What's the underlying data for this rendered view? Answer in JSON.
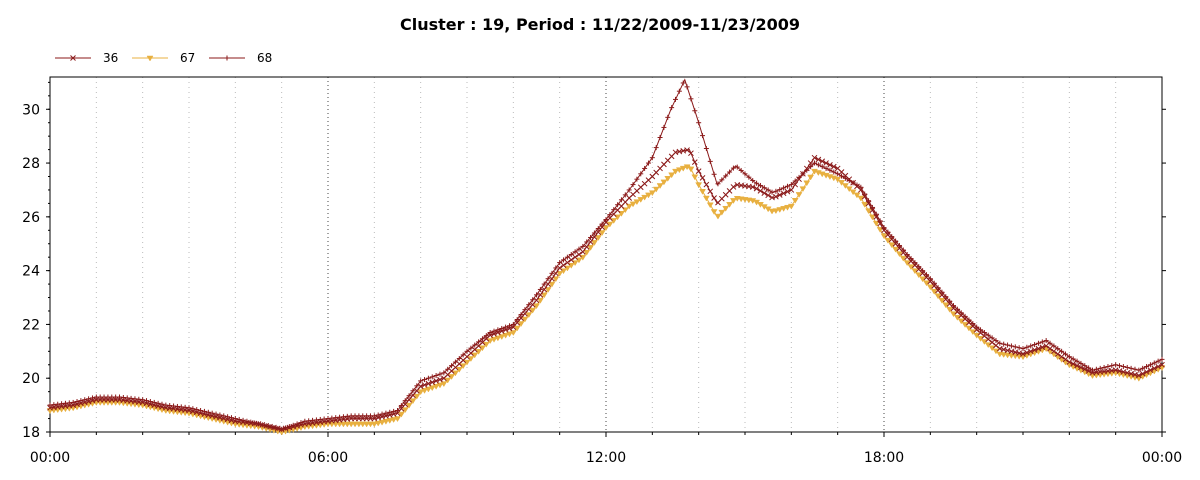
{
  "chart_data": {
    "type": "line",
    "title": "Cluster : 19, Period : 11/22/2009-11/23/2009",
    "xlabel": "",
    "ylabel": "",
    "x_unit": "hours",
    "xlim": [
      0,
      24
    ],
    "ylim": [
      18,
      31.2
    ],
    "x_ticks": [
      {
        "value": 0,
        "label": "00:00"
      },
      {
        "value": 6,
        "label": "06:00"
      },
      {
        "value": 12,
        "label": "12:00"
      },
      {
        "value": 18,
        "label": "18:00"
      },
      {
        "value": 24,
        "label": "00:00"
      }
    ],
    "y_ticks": [
      18,
      20,
      22,
      24,
      26,
      28,
      30
    ],
    "grid": "vertical dotted",
    "legend_position": "top-left",
    "series": [
      {
        "name": "36",
        "color": "#8b1a1a",
        "marker": "x",
        "points": [
          [
            0,
            18.9
          ],
          [
            0.5,
            19.0
          ],
          [
            1,
            19.2
          ],
          [
            1.5,
            19.2
          ],
          [
            2,
            19.1
          ],
          [
            2.5,
            18.9
          ],
          [
            3,
            18.8
          ],
          [
            3.5,
            18.6
          ],
          [
            4,
            18.4
          ],
          [
            4.5,
            18.3
          ],
          [
            5,
            18.1
          ],
          [
            5.5,
            18.3
          ],
          [
            6,
            18.4
          ],
          [
            6.5,
            18.5
          ],
          [
            7,
            18.5
          ],
          [
            7.5,
            18.7
          ],
          [
            8,
            19.7
          ],
          [
            8.5,
            20.0
          ],
          [
            9,
            20.8
          ],
          [
            9.5,
            21.6
          ],
          [
            10,
            21.9
          ],
          [
            10.5,
            22.9
          ],
          [
            11,
            24.1
          ],
          [
            11.5,
            24.7
          ],
          [
            12,
            25.8
          ],
          [
            12.5,
            26.7
          ],
          [
            13,
            27.5
          ],
          [
            13.5,
            28.4
          ],
          [
            13.8,
            28.5
          ],
          [
            14,
            27.7
          ],
          [
            14.4,
            26.5
          ],
          [
            14.8,
            27.2
          ],
          [
            15.2,
            27.1
          ],
          [
            15.6,
            26.7
          ],
          [
            16,
            27.0
          ],
          [
            16.5,
            28.2
          ],
          [
            17,
            27.8
          ],
          [
            17.5,
            27.0
          ],
          [
            18,
            25.5
          ],
          [
            18.5,
            24.5
          ],
          [
            19,
            23.6
          ],
          [
            19.5,
            22.6
          ],
          [
            20,
            21.8
          ],
          [
            20.5,
            21.1
          ],
          [
            21,
            20.9
          ],
          [
            21.5,
            21.2
          ],
          [
            22,
            20.6
          ],
          [
            22.5,
            20.2
          ],
          [
            23,
            20.3
          ],
          [
            23.5,
            20.1
          ],
          [
            24,
            20.5
          ]
        ]
      },
      {
        "name": "67",
        "color": "#e8b040",
        "marker": "triangle-down",
        "points": [
          [
            0,
            18.8
          ],
          [
            0.5,
            18.9
          ],
          [
            1,
            19.1
          ],
          [
            1.5,
            19.1
          ],
          [
            2,
            19.0
          ],
          [
            2.5,
            18.8
          ],
          [
            3,
            18.7
          ],
          [
            3.5,
            18.5
          ],
          [
            4,
            18.3
          ],
          [
            4.5,
            18.2
          ],
          [
            5,
            18.0
          ],
          [
            5.5,
            18.2
          ],
          [
            6,
            18.3
          ],
          [
            6.5,
            18.3
          ],
          [
            7,
            18.3
          ],
          [
            7.5,
            18.5
          ],
          [
            8,
            19.5
          ],
          [
            8.5,
            19.8
          ],
          [
            9,
            20.6
          ],
          [
            9.5,
            21.4
          ],
          [
            10,
            21.7
          ],
          [
            10.5,
            22.7
          ],
          [
            11,
            23.9
          ],
          [
            11.5,
            24.5
          ],
          [
            12,
            25.6
          ],
          [
            12.5,
            26.4
          ],
          [
            13,
            26.9
          ],
          [
            13.5,
            27.7
          ],
          [
            13.8,
            27.9
          ],
          [
            14,
            27.2
          ],
          [
            14.4,
            26.0
          ],
          [
            14.8,
            26.7
          ],
          [
            15.2,
            26.6
          ],
          [
            15.6,
            26.2
          ],
          [
            16,
            26.4
          ],
          [
            16.5,
            27.7
          ],
          [
            17,
            27.4
          ],
          [
            17.5,
            26.7
          ],
          [
            18,
            25.3
          ],
          [
            18.5,
            24.3
          ],
          [
            19,
            23.4
          ],
          [
            19.5,
            22.4
          ],
          [
            20,
            21.6
          ],
          [
            20.5,
            20.9
          ],
          [
            21,
            20.8
          ],
          [
            21.5,
            21.1
          ],
          [
            22,
            20.5
          ],
          [
            22.5,
            20.1
          ],
          [
            23,
            20.2
          ],
          [
            23.5,
            20.0
          ],
          [
            24,
            20.4
          ]
        ]
      },
      {
        "name": "68",
        "color": "#8b1a1a",
        "marker": "plus",
        "points": [
          [
            0,
            19.0
          ],
          [
            0.5,
            19.1
          ],
          [
            1,
            19.3
          ],
          [
            1.5,
            19.3
          ],
          [
            2,
            19.2
          ],
          [
            2.5,
            19.0
          ],
          [
            3,
            18.9
          ],
          [
            3.5,
            18.7
          ],
          [
            4,
            18.5
          ],
          [
            4.5,
            18.3
          ],
          [
            5,
            18.1
          ],
          [
            5.5,
            18.4
          ],
          [
            6,
            18.5
          ],
          [
            6.5,
            18.6
          ],
          [
            7,
            18.6
          ],
          [
            7.5,
            18.8
          ],
          [
            8,
            19.9
          ],
          [
            8.5,
            20.2
          ],
          [
            9,
            21.0
          ],
          [
            9.5,
            21.7
          ],
          [
            10,
            22.0
          ],
          [
            10.5,
            23.1
          ],
          [
            11,
            24.3
          ],
          [
            11.5,
            24.9
          ],
          [
            12,
            25.9
          ],
          [
            12.5,
            27.0
          ],
          [
            13,
            28.2
          ],
          [
            13.4,
            30.0
          ],
          [
            13.7,
            31.1
          ],
          [
            14,
            29.5
          ],
          [
            14.4,
            27.2
          ],
          [
            14.8,
            27.9
          ],
          [
            15.2,
            27.3
          ],
          [
            15.6,
            26.9
          ],
          [
            16,
            27.2
          ],
          [
            16.5,
            28.0
          ],
          [
            17,
            27.6
          ],
          [
            17.5,
            27.1
          ],
          [
            18,
            25.6
          ],
          [
            18.5,
            24.6
          ],
          [
            19,
            23.7
          ],
          [
            19.5,
            22.7
          ],
          [
            20,
            21.9
          ],
          [
            20.5,
            21.3
          ],
          [
            21,
            21.1
          ],
          [
            21.5,
            21.4
          ],
          [
            22,
            20.8
          ],
          [
            22.5,
            20.3
          ],
          [
            23,
            20.5
          ],
          [
            23.5,
            20.3
          ],
          [
            24,
            20.7
          ]
        ]
      }
    ]
  }
}
